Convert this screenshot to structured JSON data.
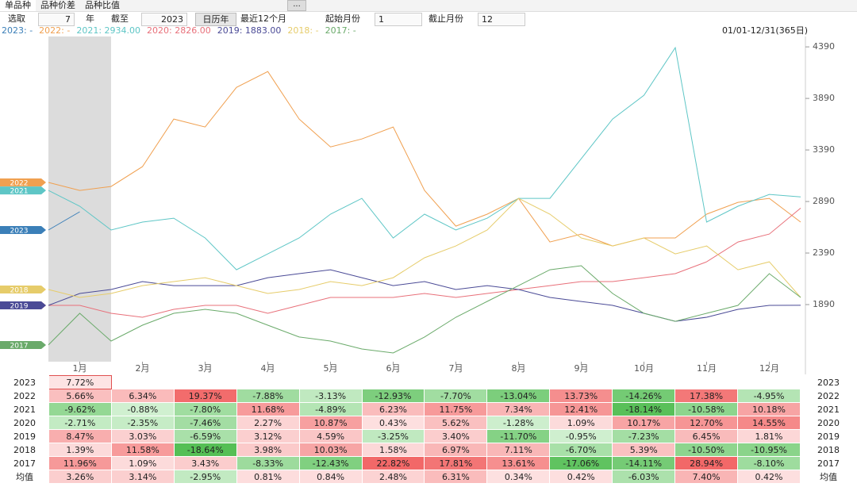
{
  "tabs": [
    "单品种",
    "品种价差",
    "品种比值"
  ],
  "toolbar": {
    "pick_label": "选取",
    "years": "7",
    "year_unit": "年",
    "until_label": "截至",
    "until_year": "2023",
    "calendar_btn": "日历年",
    "recent_btn": "最近12个月",
    "start_label": "起始月份",
    "start_month": "1",
    "end_label": "截止月份",
    "end_month": "12",
    "more_btn": "..."
  },
  "chart_data": {
    "type": "line",
    "range_label": "01/01-12/31(365日)",
    "x": [
      0,
      0.5,
      1,
      1.5,
      2,
      2.5,
      3,
      3.5,
      4,
      4.5,
      5,
      5.5,
      6,
      6.5,
      7,
      7.5,
      8,
      8.5,
      9,
      9.5,
      10,
      10.5,
      11,
      11.5,
      12
    ],
    "xlim": [
      0,
      12
    ],
    "xticks": [
      {
        "value": 0.5,
        "label": "1月"
      },
      {
        "value": 1.5,
        "label": "2月"
      },
      {
        "value": 2.5,
        "label": "3月"
      },
      {
        "value": 3.5,
        "label": "4月"
      },
      {
        "value": 4.5,
        "label": "5月"
      },
      {
        "value": 5.5,
        "label": "6月"
      },
      {
        "value": 6.5,
        "label": "7月"
      },
      {
        "value": 7.5,
        "label": "8月"
      },
      {
        "value": 8.5,
        "label": "9月"
      },
      {
        "value": 9.5,
        "label": "10月"
      },
      {
        "value": 10.5,
        "label": "11月"
      },
      {
        "value": 11.5,
        "label": "12月"
      }
    ],
    "ylim": [
      1336,
      4460
    ],
    "yticks": [
      1890,
      2390,
      2890,
      3390,
      3890,
      4390
    ],
    "series": [
      {
        "name": "2023",
        "legend_label": "2023: -",
        "color": "#3b7fb8",
        "values": [
          2613,
          2790,
          null,
          null,
          null,
          null,
          null,
          null,
          null,
          null,
          null,
          null,
          null,
          null,
          null,
          null,
          null,
          null,
          null,
          null,
          null,
          null,
          null,
          null,
          null
        ]
      },
      {
        "name": "2022",
        "legend_label": "2022: -",
        "color": "#f0a050",
        "values": [
          3075,
          2997,
          3036,
          3228,
          3690,
          3613,
          3997,
          4151,
          3690,
          3420,
          3497,
          3613,
          2997,
          2651,
          2767,
          2920,
          2497,
          2574,
          2459,
          2536,
          2536,
          2767,
          2882,
          2920,
          2690
        ]
      },
      {
        "name": "2021",
        "legend_label": "2021: 2934.00",
        "color": "#5ec6c6",
        "values": [
          2997,
          2844,
          2613,
          2690,
          2728,
          2536,
          2228,
          2382,
          2536,
          2767,
          2920,
          2536,
          2767,
          2613,
          2728,
          2920,
          2920,
          3305,
          3690,
          3920,
          4382,
          2690,
          2844,
          2959,
          2934
        ]
      },
      {
        "name": "2020",
        "legend_label": "2020: 2826.00",
        "color": "#e8707a",
        "values": [
          1882,
          1882,
          1805,
          1767,
          1844,
          1882,
          1882,
          1805,
          1882,
          1959,
          1959,
          1959,
          1998,
          1959,
          1998,
          2036,
          2074,
          2113,
          2113,
          2151,
          2190,
          2305,
          2497,
          2574,
          2826
        ]
      },
      {
        "name": "2019",
        "legend_label": "2019: 1883.00",
        "color": "#4a4a96",
        "values": [
          1882,
          1998,
          2036,
          2113,
          2074,
          2074,
          2074,
          2151,
          2190,
          2228,
          2151,
          2074,
          2113,
          2036,
          2074,
          2036,
          1959,
          1920,
          1882,
          1805,
          1728,
          1767,
          1844,
          1882,
          1883
        ]
      },
      {
        "name": "2018",
        "legend_label": "2018: -",
        "color": "#e6cc6a",
        "values": [
          2036,
          1959,
          1998,
          2074,
          2113,
          2151,
          2074,
          1998,
          2036,
          2113,
          2074,
          2151,
          2344,
          2459,
          2613,
          2920,
          2767,
          2536,
          2459,
          2536,
          2382,
          2459,
          2228,
          2305,
          1959
        ]
      },
      {
        "name": "2017",
        "legend_label": "2017: -",
        "color": "#6aaa6a",
        "values": [
          1498,
          1805,
          1536,
          1690,
          1805,
          1844,
          1805,
          1690,
          1575,
          1536,
          1459,
          1421,
          1575,
          1767,
          1921,
          2074,
          2228,
          2267,
          1998,
          1805,
          1728,
          1805,
          1882,
          2190,
          1959
        ]
      }
    ]
  },
  "table": {
    "rows": [
      {
        "label": "2023",
        "cells": [
          "7.72%"
        ]
      },
      {
        "label": "2022",
        "cells": [
          "5.66%",
          "6.34%",
          "19.37%",
          "-7.88%",
          "-3.13%",
          "-12.93%",
          "-7.70%",
          "-13.04%",
          "13.73%",
          "-14.26%",
          "17.38%",
          "-4.95%"
        ]
      },
      {
        "label": "2021",
        "cells": [
          "-9.62%",
          "-0.88%",
          "-7.80%",
          "11.68%",
          "-4.89%",
          "6.23%",
          "11.75%",
          "7.34%",
          "12.41%",
          "-18.14%",
          "-10.58%",
          "10.18%"
        ]
      },
      {
        "label": "2020",
        "cells": [
          "-2.71%",
          "-2.35%",
          "-7.46%",
          "2.27%",
          "10.87%",
          "0.43%",
          "5.62%",
          "-1.28%",
          "1.09%",
          "10.17%",
          "12.70%",
          "14.55%"
        ]
      },
      {
        "label": "2019",
        "cells": [
          "8.47%",
          "3.03%",
          "-6.59%",
          "3.12%",
          "4.59%",
          "-3.25%",
          "3.40%",
          "-11.70%",
          "-0.95%",
          "-7.23%",
          "6.45%",
          "1.81%"
        ]
      },
      {
        "label": "2018",
        "cells": [
          "1.39%",
          "11.58%",
          "-18.64%",
          "3.98%",
          "10.03%",
          "1.58%",
          "6.97%",
          "7.11%",
          "-6.70%",
          "5.39%",
          "-10.50%",
          "-10.95%"
        ]
      },
      {
        "label": "2017",
        "cells": [
          "11.96%",
          "1.09%",
          "3.43%",
          "-8.33%",
          "-12.43%",
          "22.82%",
          "17.81%",
          "13.61%",
          "-17.06%",
          "-14.11%",
          "28.94%",
          "-8.10%"
        ]
      },
      {
        "label": "均值",
        "cells": [
          "3.26%",
          "3.14%",
          "-2.95%",
          "0.81%",
          "0.84%",
          "2.48%",
          "6.31%",
          "0.34%",
          "0.42%",
          "-6.03%",
          "7.40%",
          "0.42%"
        ]
      }
    ]
  }
}
